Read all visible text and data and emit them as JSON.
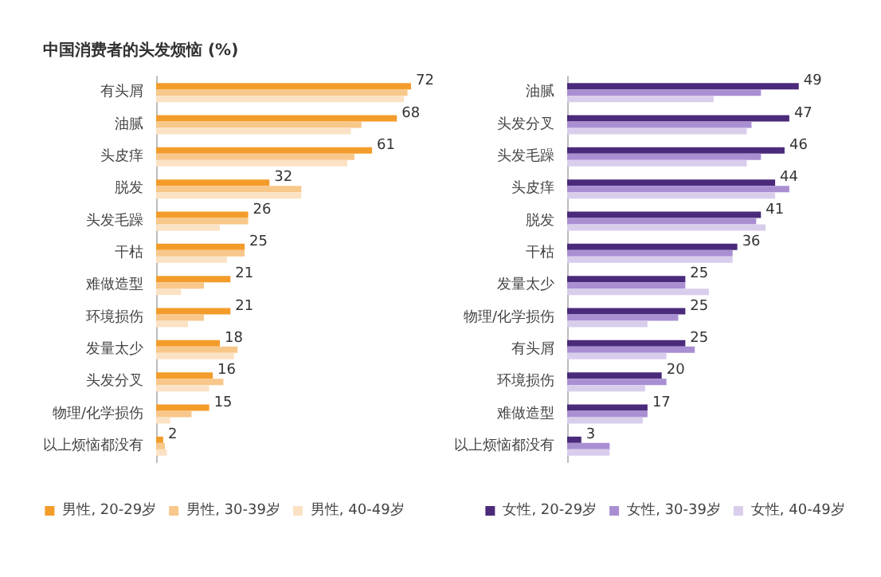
{
  "chart_data": [
    {
      "type": "bar",
      "orientation": "horizontal",
      "title": "中国消费者的头发烦恼 (%)",
      "categories": [
        "有头屑",
        "油腻",
        "头皮痒",
        "脱发",
        "头发毛躁",
        "干枯",
        "难做造型",
        "环境损伤",
        "发量太少",
        "头发分叉",
        "物理/化学损伤",
        "以上烦恼都没有"
      ],
      "tick_labels": "y",
      "legend": "bottom",
      "series": [
        {
          "name": "男性, 20-29岁",
          "color": "#f39c2a",
          "values": [
            72,
            68,
            61,
            32,
            26,
            25,
            21,
            21,
            18,
            16,
            15,
            2
          ],
          "value_labels": [
            "72",
            "68",
            "61",
            "32",
            "26",
            "25",
            "21",
            "21",
            "18",
            "16",
            "15",
            "2"
          ]
        },
        {
          "name": "男性, 30-39岁",
          "color": "#f8c78a",
          "values": [
            71,
            58,
            56,
            41,
            26,
            25,
            13.5,
            13.5,
            23,
            19,
            10,
            2.5
          ]
        },
        {
          "name": "男性, 40-49岁",
          "color": "#fbe2c4",
          "values": [
            70,
            55,
            54,
            41,
            18,
            20,
            7,
            9,
            22,
            15,
            4,
            3
          ]
        }
      ]
    },
    {
      "type": "bar",
      "orientation": "horizontal",
      "categories": [
        "油腻",
        "头发分叉",
        "头发毛躁",
        "头皮痒",
        "脱发",
        "干枯",
        "发量太少",
        "物理/化学损伤",
        "有头屑",
        "环境损伤",
        "难做造型",
        "以上烦恼都没有"
      ],
      "tick_labels": "y",
      "legend": "bottom",
      "series": [
        {
          "name": "女性, 20-29岁",
          "color": "#4b2a7b",
          "values": [
            49,
            47,
            46,
            44,
            41,
            36,
            25,
            25,
            25,
            20,
            17,
            3
          ],
          "value_labels": [
            "49",
            "47",
            "46",
            "44",
            "41",
            "36",
            "25",
            "25",
            "25",
            "20",
            "17",
            "3"
          ]
        },
        {
          "name": "女性, 30-39岁",
          "color": "#a98fd2",
          "values": [
            41,
            39,
            41,
            47,
            40,
            35,
            25,
            23.5,
            27,
            21,
            17,
            9
          ]
        },
        {
          "name": "女性, 40-49岁",
          "color": "#d9cdec",
          "values": [
            31,
            38,
            38,
            44,
            42,
            35,
            30,
            17,
            21,
            16.5,
            16,
            9
          ]
        }
      ]
    }
  ]
}
